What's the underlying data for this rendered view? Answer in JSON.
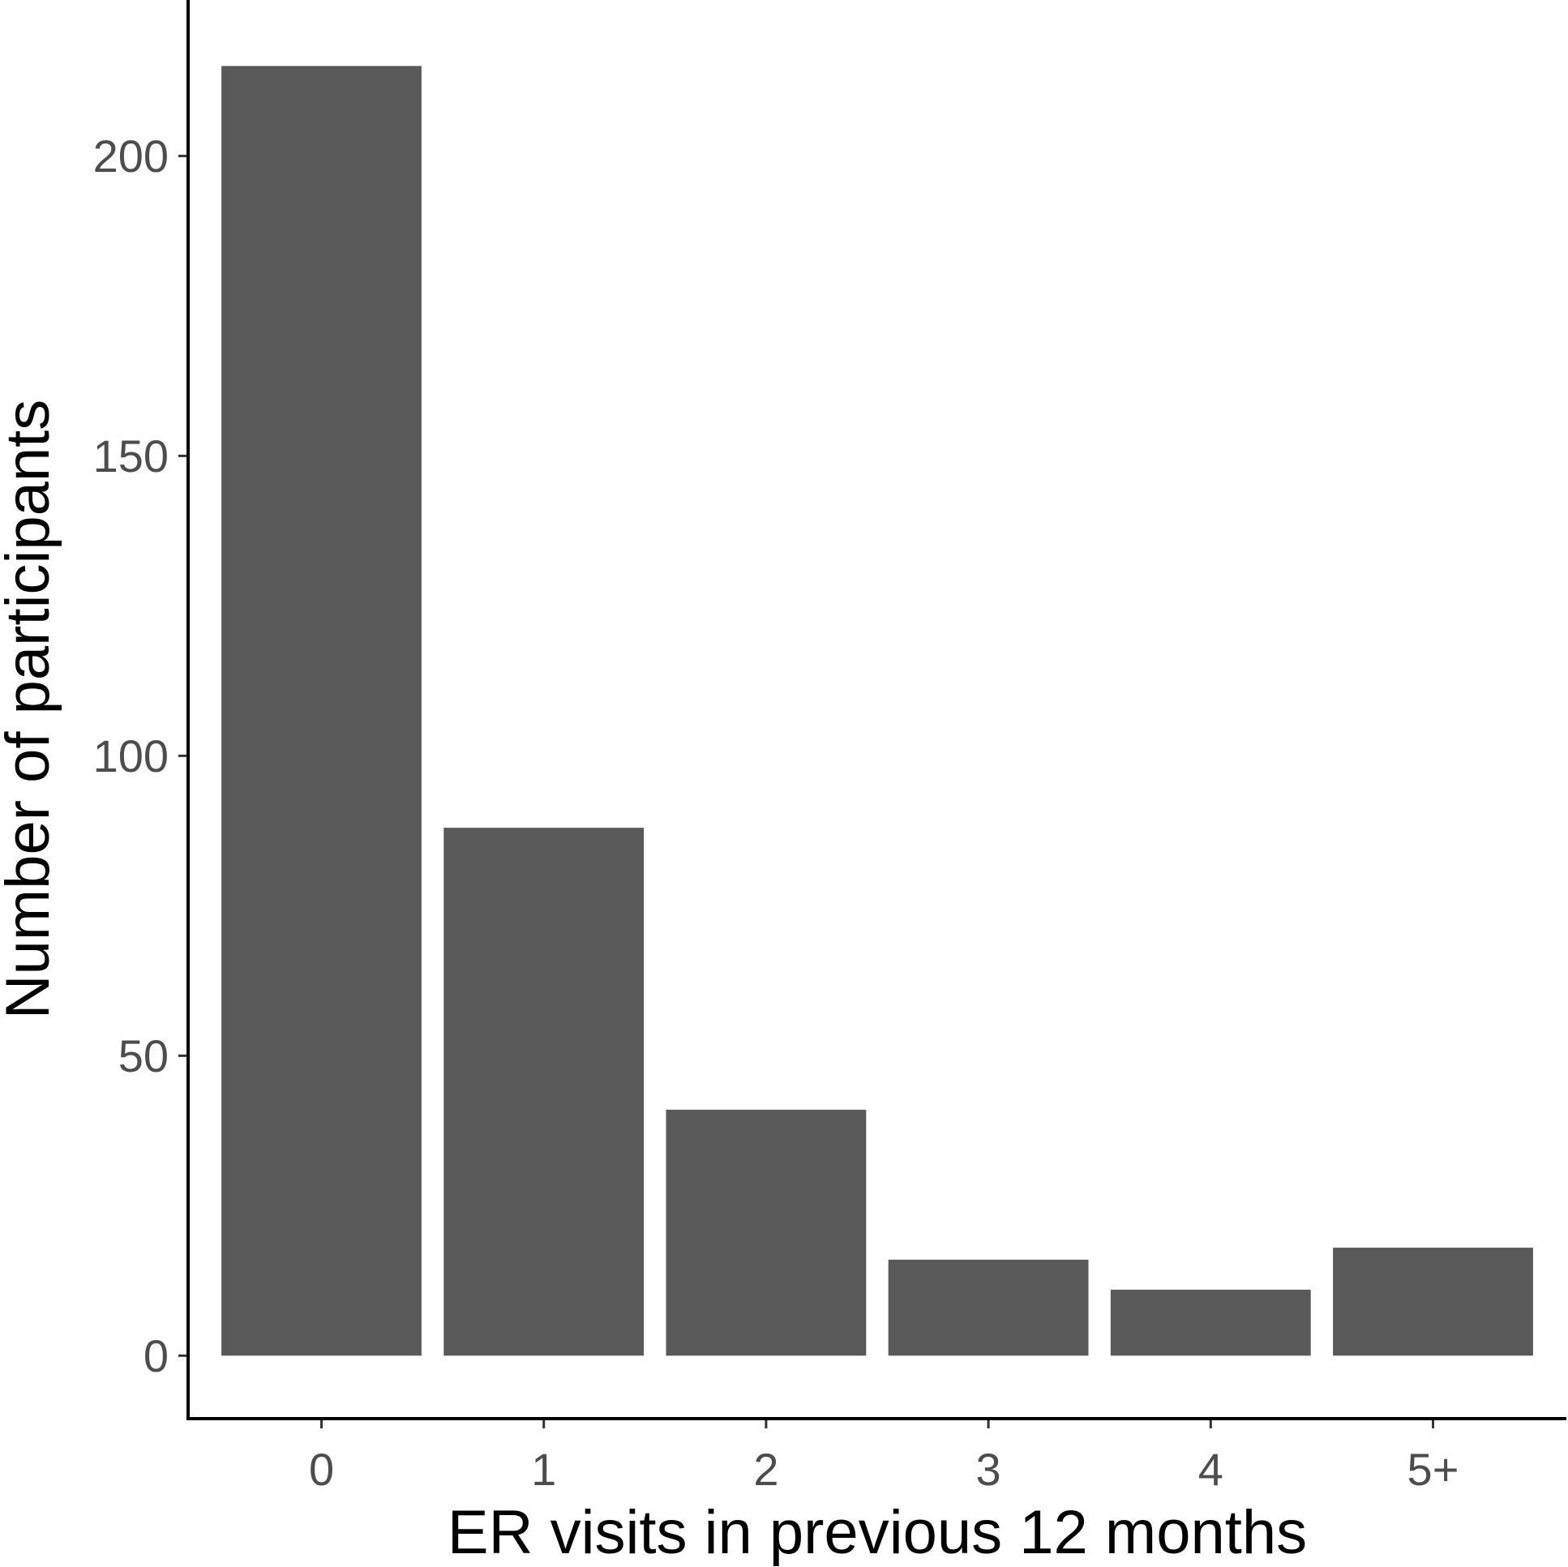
{
  "chart_data": {
    "type": "bar",
    "title": "",
    "xlabel": "ER visits in previous 12 months",
    "ylabel": "Number of participants",
    "categories": [
      "0",
      "1",
      "2",
      "3",
      "4",
      "5+"
    ],
    "values": [
      215,
      88,
      41,
      16,
      11,
      18
    ],
    "ylim": [
      -10.5,
      226
    ],
    "yticks": [
      0,
      50,
      100,
      150,
      200
    ],
    "grid": false,
    "legend": "none",
    "bar_color": "#595959",
    "axis_color": "#000000",
    "tick_label_color": "#4d4d4d"
  }
}
